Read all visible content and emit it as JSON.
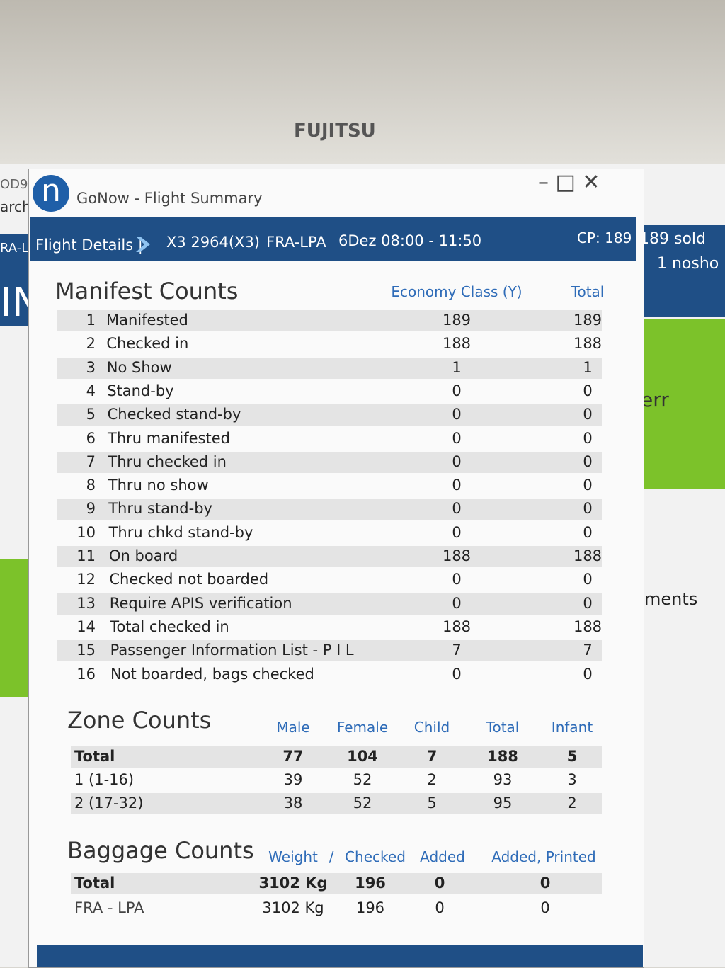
{
  "monitor_brand": "FUJITSU",
  "window": {
    "logo": "n",
    "title": "GoNow - Flight Summary"
  },
  "left_fragments": {
    "top": "OD9",
    "search": "arch",
    "tab": "RA-L",
    "big": "IN"
  },
  "right_panel": {
    "sold": "189 sold",
    "noshow": "1 nosho",
    "status": "err",
    "link": "ments"
  },
  "header": {
    "label": "Flight Details |",
    "flight": "X3 2964(X3)",
    "route": "FRA-LPA",
    "date": "6Dez 08:00 - 11:50",
    "cp": "CP: 189"
  },
  "manifest": {
    "title": "Manifest Counts",
    "columns": [
      "Economy Class (Y)",
      "Total"
    ],
    "rows": [
      [
        "1",
        "Manifested",
        "189",
        "189"
      ],
      [
        "2",
        "Checked in",
        "188",
        "188"
      ],
      [
        "3",
        "No Show",
        "1",
        "1"
      ],
      [
        "4",
        "Stand-by",
        "0",
        "0"
      ],
      [
        "5",
        "Checked stand-by",
        "0",
        "0"
      ],
      [
        "6",
        "Thru manifested",
        "0",
        "0"
      ],
      [
        "7",
        "Thru checked in",
        "0",
        "0"
      ],
      [
        "8",
        "Thru no show",
        "0",
        "0"
      ],
      [
        "9",
        "Thru stand-by",
        "0",
        "0"
      ],
      [
        "10",
        "Thru chkd stand-by",
        "0",
        "0"
      ],
      [
        "11",
        "On board",
        "188",
        "188"
      ],
      [
        "12",
        "Checked not boarded",
        "0",
        "0"
      ],
      [
        "13",
        "Require APIS verification",
        "0",
        "0"
      ],
      [
        "14",
        "Total checked in",
        "188",
        "188"
      ],
      [
        "15",
        "Passenger Information List - P I L",
        "7",
        "7"
      ],
      [
        "16",
        "Not boarded, bags checked",
        "0",
        "0"
      ]
    ]
  },
  "zone": {
    "title": "Zone Counts",
    "columns": [
      "Male",
      "Female",
      "Child",
      "Total",
      "Infant"
    ],
    "rows": [
      [
        "Total",
        "77",
        "104",
        "7",
        "188",
        "5"
      ],
      [
        "1 (1-16)",
        "39",
        "52",
        "2",
        "93",
        "3"
      ],
      [
        "2 (17-32)",
        "38",
        "52",
        "5",
        "95",
        "2"
      ]
    ]
  },
  "baggage": {
    "title": "Baggage Counts",
    "columns": [
      "Weight",
      "/",
      "Checked",
      "Added",
      "Added, Printed"
    ],
    "rows": [
      [
        "Total",
        "3102 Kg",
        "196",
        "0",
        "0"
      ],
      [
        "FRA - LPA",
        "3102 Kg",
        "196",
        "0",
        "0"
      ]
    ]
  }
}
